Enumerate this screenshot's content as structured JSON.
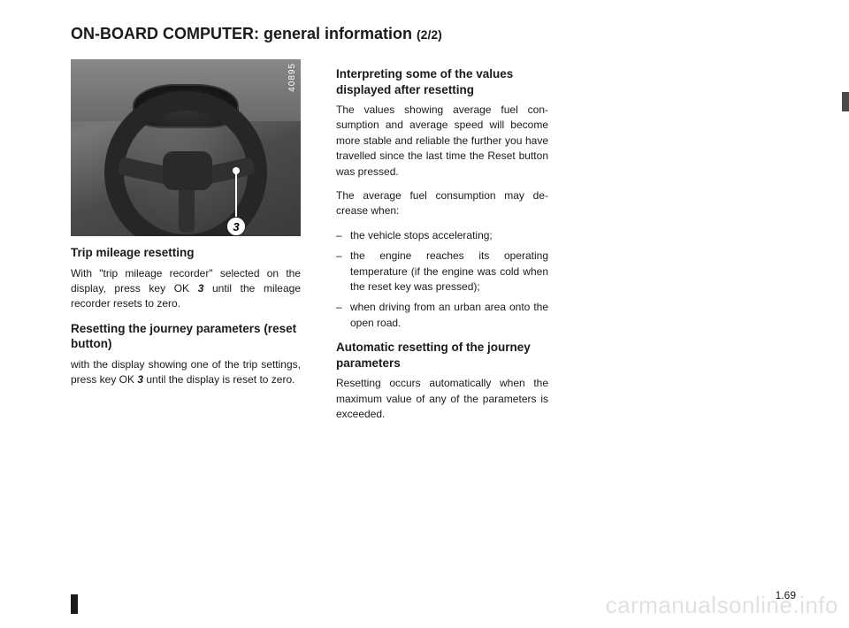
{
  "title_main": "ON-BOARD COMPUTER: general information ",
  "title_sub": "(2/2)",
  "image": {
    "id": "40895",
    "callout_label": "3"
  },
  "col1": {
    "h1": "Trip mileage resetting",
    "p1a": "With \"trip mileage recorder\" selected on the display, press key OK ",
    "p1b": "3",
    "p1c": " until the mileage recorder resets to zero.",
    "h2": "Resetting the journey parameters (reset button)",
    "p2a": "with the display showing one of the trip settings, press key OK ",
    "p2b": "3",
    "p2c": " until the dis­play is reset to zero."
  },
  "col2": {
    "h1": "Interpreting some of the values displayed after resetting",
    "p1": "The values showing average fuel con­sumption and average speed will become more stable and reliable the further you have travelled since the last time the Reset button was pressed.",
    "p2": "The average fuel consumption may de­crease when:",
    "li1": "the vehicle stops accelerating;",
    "li2": "the engine reaches its operating temperature (if the engine was cold when the reset key was pressed);",
    "li3": "when driving from an urban area onto the open road.",
    "h2": "Automatic resetting of the journey parameters",
    "p3": "Resetting occurs automatically when the maximum value of any of the pa­rameters is exceeded."
  },
  "page_number": "1.69",
  "watermark": "carmanualsonline.info"
}
